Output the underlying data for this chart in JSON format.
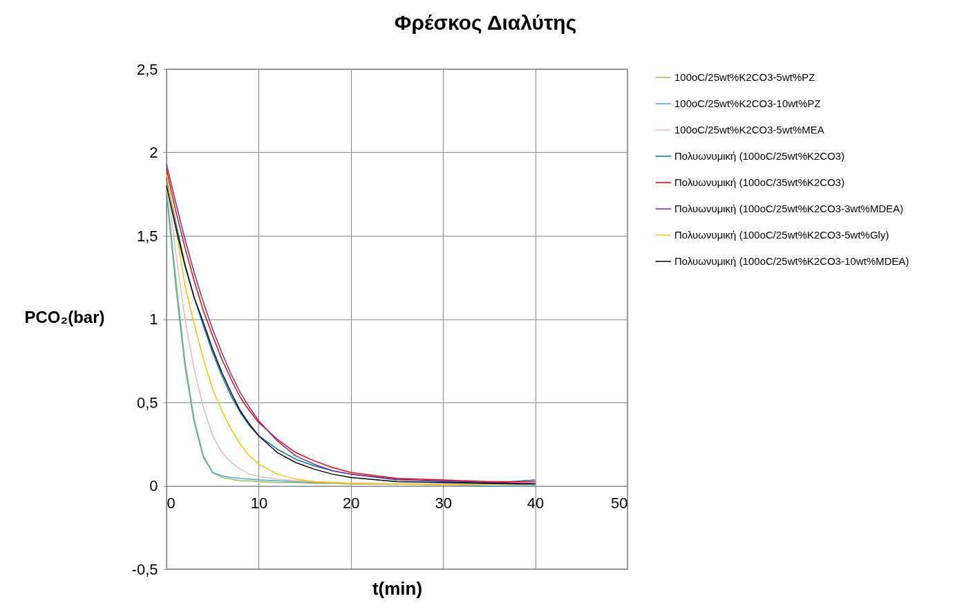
{
  "chart_data": {
    "type": "line",
    "title": "Φρέσκος Διαλύτης",
    "xlabel": "t(min)",
    "ylabel": "PCO₂(bar)",
    "x": [
      0,
      1,
      2,
      3,
      4,
      5,
      6,
      7,
      8,
      9,
      10,
      12,
      14,
      16,
      18,
      20,
      25,
      30,
      35,
      40
    ],
    "series": [
      {
        "name": "100oC/25wt%K2CO3-5wt%PZ",
        "color": "#9bbb59",
        "values": [
          1.78,
          1.25,
          0.75,
          0.4,
          0.18,
          0.08,
          0.05,
          0.04,
          0.03,
          0.03,
          0.025,
          0.02,
          0.02,
          0.015,
          0.015,
          0.01,
          0.01,
          0.01,
          0.01,
          0.01
        ]
      },
      {
        "name": "100oC/25wt%K2CO3-10wt%PZ",
        "color": "#4bacc6",
        "values": [
          1.75,
          1.2,
          0.72,
          0.38,
          0.17,
          0.08,
          0.06,
          0.05,
          0.045,
          0.04,
          0.035,
          0.03,
          0.025,
          0.02,
          0.02,
          0.015,
          0.01,
          0.005,
          0.0,
          0.0
        ]
      },
      {
        "name": "100oC/25wt%K2CO3-5wt%MEA",
        "color": "#e6b9b8",
        "values": [
          1.85,
          1.4,
          1.0,
          0.7,
          0.47,
          0.3,
          0.2,
          0.14,
          0.1,
          0.07,
          0.055,
          0.04,
          0.03,
          0.025,
          0.02,
          0.015,
          0.01,
          0.01,
          0.01,
          0.01
        ]
      },
      {
        "name": "Πολυωνυμική (100oC/25wt%K2CO3)",
        "color": "#0070c0",
        "values": [
          1.85,
          1.58,
          1.33,
          1.13,
          0.96,
          0.8,
          0.66,
          0.54,
          0.44,
          0.36,
          0.3,
          0.22,
          0.16,
          0.12,
          0.09,
          0.07,
          0.04,
          0.025,
          0.015,
          0.035
        ]
      },
      {
        "name": "Πολυωνυμική (100oC/35wt%K2CO3)",
        "color": "#ff0000",
        "values": [
          1.9,
          1.65,
          1.43,
          1.23,
          1.05,
          0.9,
          0.76,
          0.64,
          0.53,
          0.45,
          0.38,
          0.28,
          0.2,
          0.15,
          0.11,
          0.08,
          0.045,
          0.035,
          0.025,
          0.025
        ]
      },
      {
        "name": "Πολυωνυμική (100oC/25wt%K2CO3-3wt%MDEA)",
        "color": "#7030a0",
        "values": [
          1.93,
          1.7,
          1.48,
          1.28,
          1.1,
          0.94,
          0.8,
          0.67,
          0.56,
          0.47,
          0.39,
          0.27,
          0.18,
          0.13,
          0.09,
          0.07,
          0.035,
          0.03,
          0.02,
          0.015
        ]
      },
      {
        "name": "Πολυωνυμική (100oC/25wt%K2CO3-5wt%Gly)",
        "color": "#ffc000",
        "values": [
          1.87,
          1.55,
          1.2,
          0.97,
          0.76,
          0.58,
          0.45,
          0.34,
          0.25,
          0.18,
          0.13,
          0.07,
          0.04,
          0.025,
          0.02,
          0.015,
          0.01,
          0.005,
          0.01,
          0.01
        ]
      },
      {
        "name": "Πολυωνυμική (100oC/25wt%K2CO3-10wt%MDEA)",
        "color": "#000000",
        "values": [
          1.8,
          1.55,
          1.32,
          1.13,
          0.98,
          0.82,
          0.68,
          0.56,
          0.45,
          0.37,
          0.3,
          0.2,
          0.14,
          0.1,
          0.07,
          0.05,
          0.025,
          0.02,
          0.015,
          0.01
        ]
      }
    ],
    "xlim": [
      0,
      50
    ],
    "xticks": [
      0,
      10,
      20,
      30,
      40,
      50
    ],
    "ylim": [
      -0.5,
      2.5
    ],
    "yticks": [
      {
        "value": -0.5,
        "label": "-0,5"
      },
      0,
      {
        "value": 0.5,
        "label": "0,5"
      },
      1,
      {
        "value": 1.5,
        "label": "1,5"
      },
      2,
      {
        "value": 2.5,
        "label": "2,5"
      }
    ],
    "grid": true,
    "legend": "right",
    "marker": "none",
    "line_style": "solid"
  }
}
